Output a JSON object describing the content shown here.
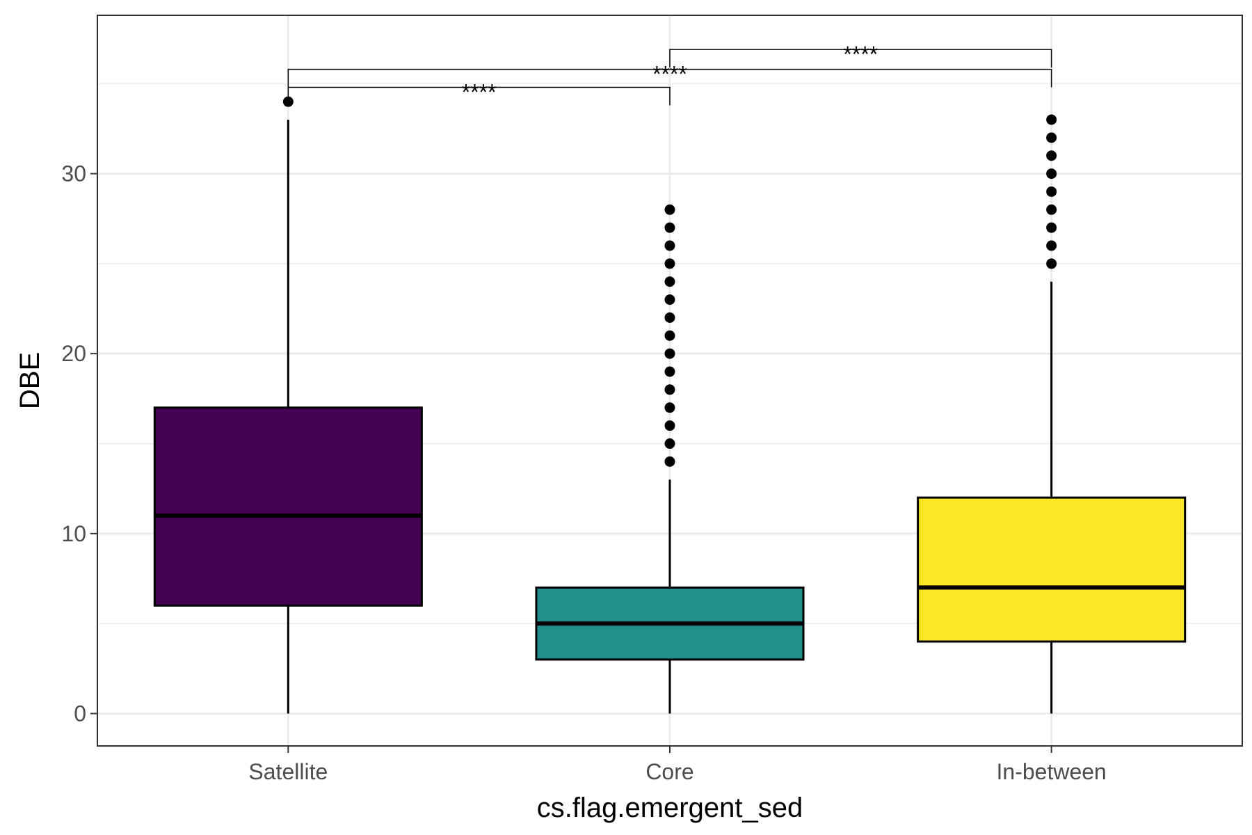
{
  "chart_data": {
    "type": "box",
    "title": "",
    "xlabel": "cs.flag.emergent_sed",
    "ylabel": "DBE",
    "ylim": [
      -1.8,
      38.8
    ],
    "y_ticks": [
      0,
      10,
      20,
      30
    ],
    "y_tick_labels": [
      "0",
      "10",
      "20",
      "30"
    ],
    "grid": true,
    "legend": "none",
    "categories": [
      "Satellite",
      "Core",
      "In-between"
    ],
    "boxes": [
      {
        "category": "Satellite",
        "color": "#440154",
        "whisker_low": 0,
        "q1": 6,
        "median": 11,
        "q3": 17,
        "whisker_high": 33,
        "outliers": [
          34
        ]
      },
      {
        "category": "Core",
        "color": "#21908C",
        "whisker_low": 0,
        "q1": 3,
        "median": 5,
        "q3": 7,
        "whisker_high": 13,
        "outliers": [
          14,
          15,
          16,
          17,
          18,
          19,
          20,
          21,
          22,
          23,
          24,
          25,
          26,
          27,
          28
        ]
      },
      {
        "category": "In-between",
        "color": "#FDE725",
        "whisker_low": 0,
        "q1": 4,
        "median": 7,
        "q3": 12,
        "whisker_high": 24,
        "outliers": [
          25,
          26,
          27,
          28,
          29,
          30,
          31,
          32,
          33
        ]
      }
    ],
    "comparisons": [
      {
        "from": "Satellite",
        "to": "Core",
        "label": "****",
        "y": 34.8,
        "tip": 1.0
      },
      {
        "from": "Satellite",
        "to": "In-between",
        "label": "****",
        "y": 35.8,
        "tip": 1.0
      },
      {
        "from": "Core",
        "to": "In-between",
        "label": "****",
        "y": 36.9,
        "tip": 1.0
      }
    ]
  }
}
